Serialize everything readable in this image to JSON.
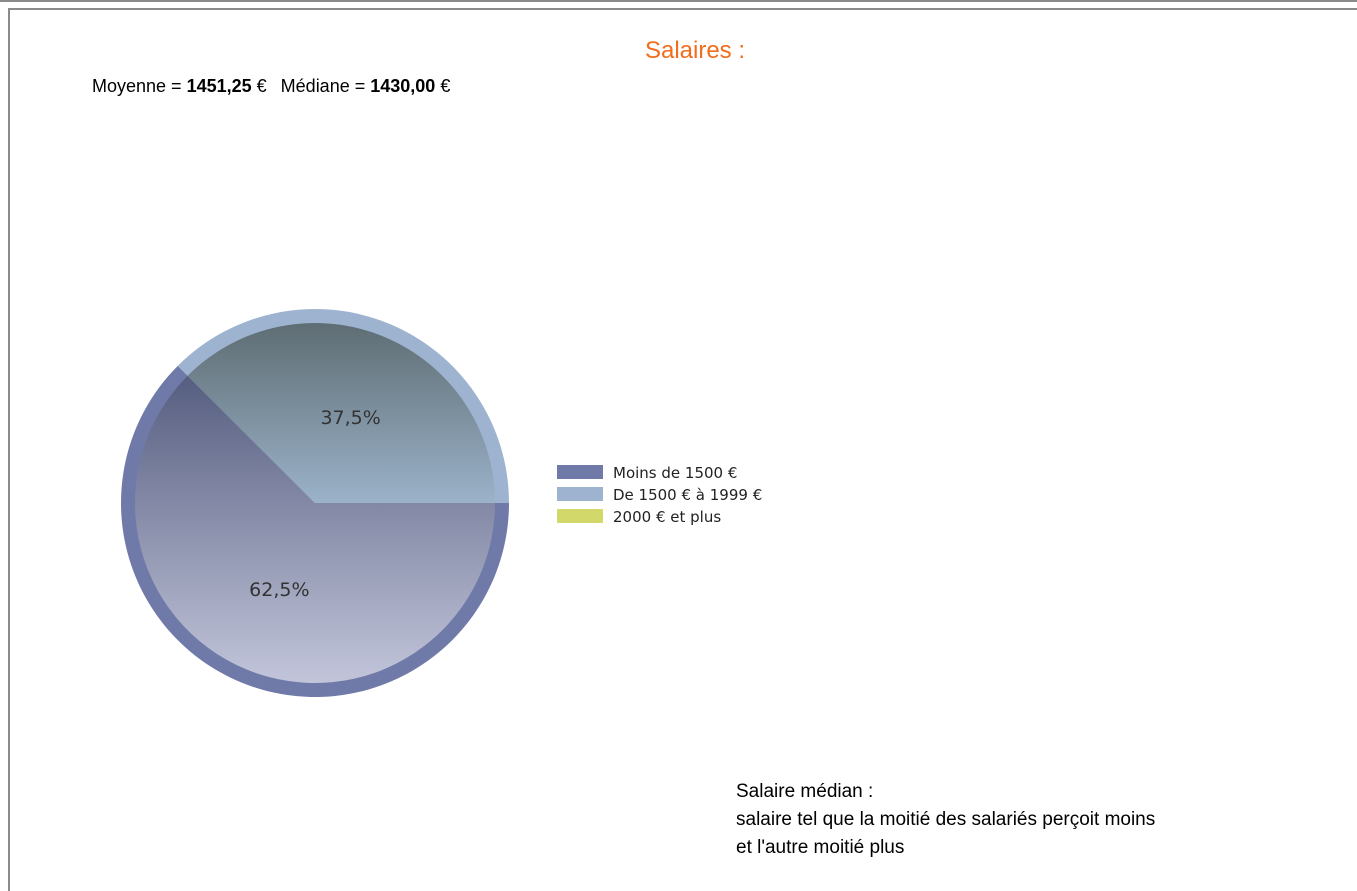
{
  "title": "Salaires :",
  "stats": {
    "moyenne_label": "Moyenne = ",
    "moyenne_value": "1451,25",
    "mediane_label": "Médiane = ",
    "mediane_value": "1430,00",
    "currency": "€"
  },
  "chart_data": {
    "type": "pie",
    "series": [
      {
        "name": "Moins de 1500 €",
        "value": 62.5,
        "label": "62,5%",
        "color": "#6f7aa8"
      },
      {
        "name": "De 1500 € à 1999 €",
        "value": 37.5,
        "label": "37,5%",
        "color": "#9db3cf"
      },
      {
        "name": "2000 € et plus",
        "value": 0,
        "label": "",
        "color": "#d2d86a"
      }
    ],
    "legend_position": "right"
  },
  "note": {
    "line1": "Salaire médian :",
    "line2": "salaire tel que la moitié des salariés perçoit moins",
    "line3": "et l'autre moitié plus"
  }
}
